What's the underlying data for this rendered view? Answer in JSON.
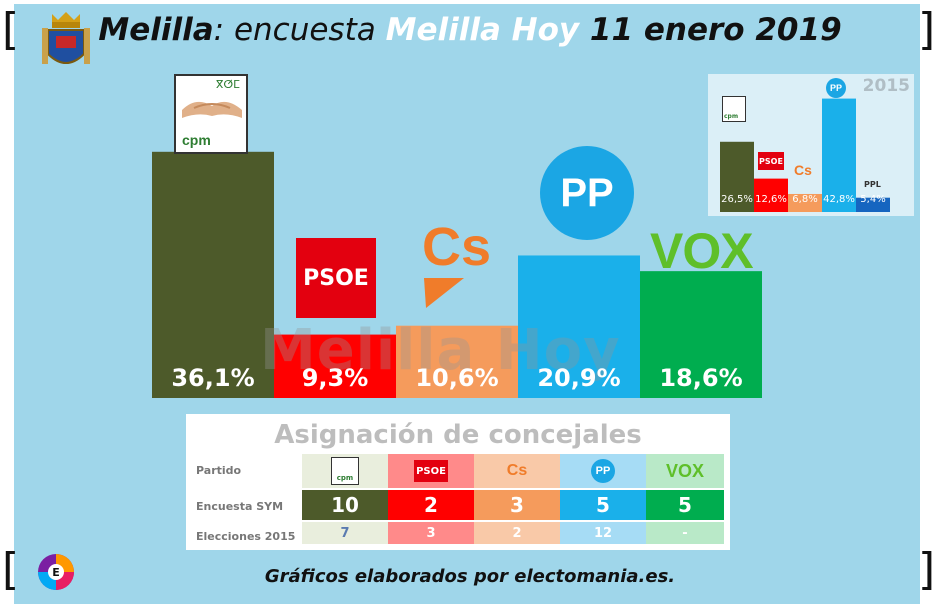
{
  "title": {
    "part1": "Melilla",
    "part2": ": encuesta ",
    "part3": "Melilla Hoy",
    "part4": " 11 enero 2019"
  },
  "watermark": "Melilla Hoy",
  "colors": {
    "cpm": "#4d5a2a",
    "psoe": "#ff0000",
    "cs": "#f59b5c",
    "pp": "#1ab0ea",
    "vox": "#00ad4f",
    "ppl": "#1565c0"
  },
  "chart_data": [
    {
      "type": "bar",
      "title": "",
      "categories": [
        "cpm",
        "PSOE",
        "Cs",
        "PP",
        "VOX"
      ],
      "values": [
        36.1,
        9.3,
        10.6,
        20.9,
        18.6
      ],
      "value_labels": [
        "36,1%",
        "9,3%",
        "10,6%",
        "20,9%",
        "18,6%"
      ],
      "ylim": [
        0,
        40
      ]
    },
    {
      "type": "bar",
      "title": "2015",
      "categories": [
        "cpm",
        "PSOE",
        "Cs",
        "PP",
        "PPL"
      ],
      "values": [
        26.5,
        12.6,
        6.8,
        42.8,
        5.4
      ],
      "value_labels": [
        "26,5%",
        "12,6%",
        "6,8%",
        "42,8%",
        "5,4%"
      ],
      "ylim": [
        0,
        45
      ]
    },
    {
      "type": "table",
      "title": "Asignación de concejales",
      "columns": [
        "Partido",
        "cpm",
        "PSOE",
        "Cs",
        "PP",
        "VOX"
      ],
      "rows": [
        {
          "label": "Encuesta SYM",
          "values": [
            "10",
            "2",
            "3",
            "5",
            "5"
          ]
        },
        {
          "label": "Elecciones 2015",
          "values": [
            "7",
            "3",
            "2",
            "12",
            "-"
          ]
        }
      ]
    }
  ],
  "logos": {
    "cpm_text": "cpm",
    "cpm_tifinagh": "ⴳⵚⵎ",
    "psoe": "PSOE",
    "cs": "Cs",
    "pp": "PP",
    "vox": "VOX",
    "ppl": "PPL",
    "electomania": "E"
  },
  "footer": "Gráficos elaborados por electomania.es."
}
